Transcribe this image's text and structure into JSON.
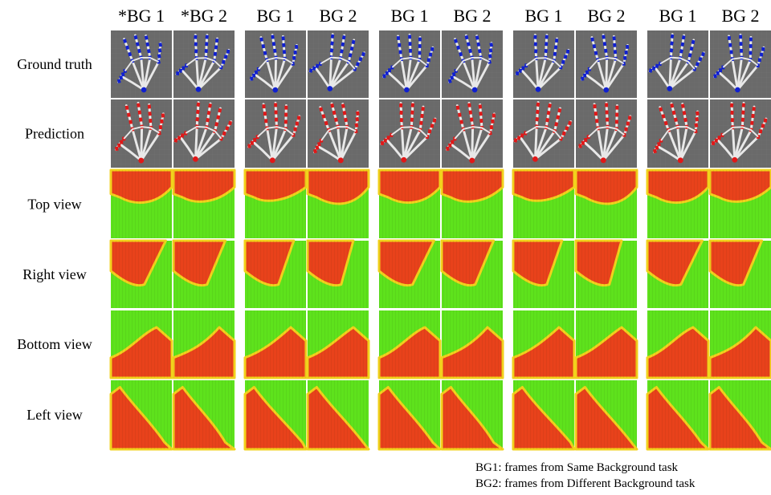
{
  "column_headers": [
    "*BG 1",
    "*BG 2",
    "BG 1",
    "BG 2",
    "BG 1",
    "BG 2",
    "BG 1",
    "BG 2",
    "BG 1",
    "BG 2"
  ],
  "row_labels": [
    "Ground truth",
    "Prediction",
    "Top view",
    "Right view",
    "Bottom view",
    "Left view"
  ],
  "legend": [
    "BG1: frames from Same Background task",
    "BG2: frames from Different Background task"
  ]
}
